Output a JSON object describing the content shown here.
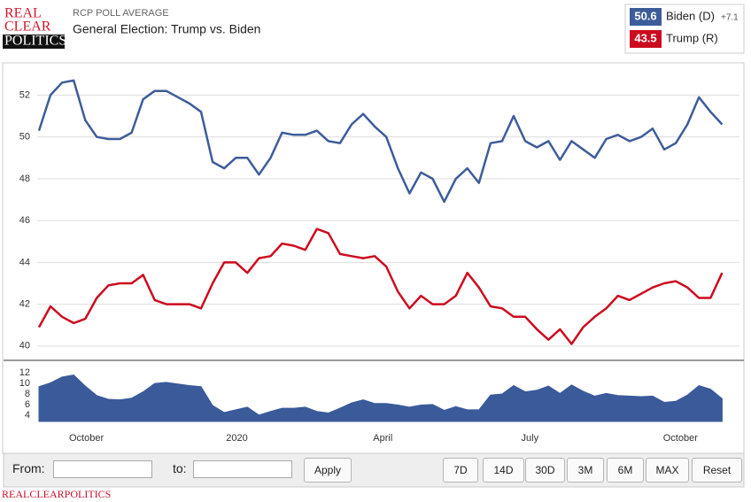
{
  "header": {
    "logo": [
      "REAL",
      "CLEAR",
      "POLITICS"
    ],
    "kicker": "RCP POLL AVERAGE",
    "title": "General Election: Trump vs. Biden"
  },
  "legend": [
    {
      "latest": 50.6,
      "name": "Biden (D)",
      "lead": "+7.1"
    },
    {
      "latest": 43.5,
      "name": "Trump (R)"
    }
  ],
  "chart_data": [
    {
      "type": "line",
      "x": [
        0,
        1,
        2,
        3,
        4,
        5,
        6,
        7,
        8,
        9,
        10,
        11,
        12,
        13,
        14,
        15,
        16,
        17,
        18,
        19,
        20,
        21,
        22,
        23,
        24,
        25,
        26,
        27,
        28,
        29,
        30,
        31,
        32,
        33,
        34,
        35,
        36,
        37,
        38,
        39,
        40,
        41,
        42,
        43,
        44,
        45,
        46,
        47,
        48,
        49,
        50,
        51,
        52,
        53,
        54,
        55,
        56,
        57,
        58,
        59
      ],
      "xlim": [
        -0.15,
        60.5
      ],
      "ylim": [
        39.4,
        53.5
      ],
      "yticks": [
        40,
        42,
        44,
        46,
        48,
        50,
        52
      ],
      "grid": true,
      "series": [
        {
          "name": "Biden (D)",
          "color": "#3d5c9a",
          "values": [
            50.3,
            52.0,
            52.6,
            52.7,
            50.8,
            50.0,
            49.9,
            49.9,
            50.2,
            51.8,
            52.2,
            52.2,
            51.9,
            51.6,
            51.2,
            48.8,
            48.5,
            49.0,
            49.0,
            48.2,
            49.0,
            50.2,
            50.1,
            50.1,
            50.3,
            49.8,
            49.7,
            50.6,
            51.1,
            50.5,
            50.0,
            48.5,
            47.3,
            48.3,
            48.0,
            46.9,
            48.0,
            48.5,
            47.8,
            49.7,
            49.8,
            51.0,
            49.8,
            49.5,
            49.8,
            48.9,
            49.8,
            49.4,
            49.0,
            49.9,
            50.1,
            49.8,
            50.0,
            50.4,
            49.4,
            49.7,
            50.6,
            51.9,
            51.2,
            50.6
          ]
        },
        {
          "name": "Trump (R)",
          "color": "#cc0b1f",
          "values": [
            40.9,
            41.9,
            41.4,
            41.1,
            41.3,
            42.3,
            42.9,
            43.0,
            43.0,
            43.4,
            42.2,
            42.0,
            42.0,
            42.0,
            41.8,
            43.0,
            44.0,
            44.0,
            43.5,
            44.2,
            44.3,
            44.9,
            44.8,
            44.6,
            45.6,
            45.4,
            44.4,
            44.3,
            44.2,
            44.3,
            43.8,
            42.6,
            41.8,
            42.4,
            42.0,
            42.0,
            42.4,
            43.5,
            42.8,
            41.9,
            41.8,
            41.4,
            41.4,
            40.8,
            40.3,
            40.8,
            40.1,
            40.9,
            41.4,
            41.8,
            42.4,
            42.2,
            42.5,
            42.8,
            43.0,
            43.1,
            42.8,
            42.3,
            42.3,
            43.5
          ]
        }
      ]
    },
    {
      "type": "area",
      "x": [
        0,
        1,
        2,
        3,
        4,
        5,
        6,
        7,
        8,
        9,
        10,
        11,
        12,
        13,
        14,
        15,
        16,
        17,
        18,
        19,
        20,
        21,
        22,
        23,
        24,
        25,
        26,
        27,
        28,
        29,
        30,
        31,
        32,
        33,
        34,
        35,
        36,
        37,
        38,
        39,
        40,
        41,
        42,
        43,
        44,
        45,
        46,
        47,
        48,
        49,
        50,
        51,
        52,
        53,
        54,
        55,
        56,
        57,
        58,
        59
      ],
      "xlim": [
        -0.15,
        60.5
      ],
      "xticks": [
        {
          "value": 4.1,
          "label": "October"
        },
        {
          "value": 17.1,
          "label": "2020"
        },
        {
          "value": 29.7,
          "label": "April"
        },
        {
          "value": 42.4,
          "label": "July"
        },
        {
          "value": 55.4,
          "label": "October"
        }
      ],
      "ylim": [
        2.8,
        13.2
      ],
      "yticks": [
        4,
        6,
        8,
        10,
        12
      ],
      "color": "#3b5a9a",
      "values": [
        9.4,
        10.1,
        11.2,
        11.6,
        9.5,
        7.7,
        7.0,
        6.9,
        7.2,
        8.4,
        10.0,
        10.2,
        9.9,
        9.6,
        9.4,
        5.8,
        4.5,
        5.0,
        5.5,
        4.0,
        4.7,
        5.3,
        5.3,
        5.5,
        4.7,
        4.4,
        5.3,
        6.3,
        6.9,
        6.2,
        6.2,
        5.9,
        5.5,
        5.9,
        6.0,
        4.9,
        5.6,
        5.0,
        5.0,
        7.8,
        8.0,
        9.6,
        8.4,
        8.7,
        9.5,
        8.1,
        9.7,
        8.5,
        7.6,
        8.1,
        7.7,
        7.6,
        7.5,
        7.6,
        6.4,
        6.6,
        7.8,
        9.6,
        8.9,
        7.1
      ]
    }
  ],
  "controls": {
    "from": "From:",
    "to": "to:",
    "apply": "Apply",
    "ranges": [
      "7D",
      "14D",
      "30D",
      "3M",
      "6M",
      "MAX",
      "Reset"
    ]
  },
  "footer": "REALCLEARPOLITICS"
}
